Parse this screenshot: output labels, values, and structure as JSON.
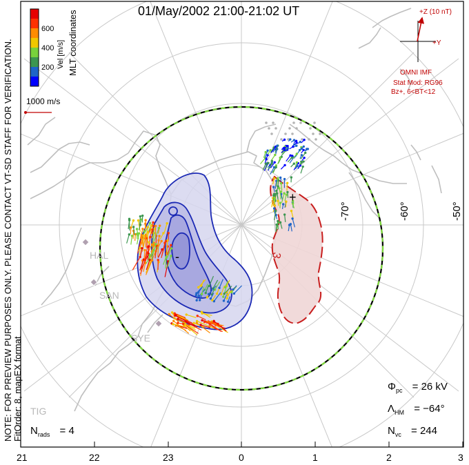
{
  "title": "01/May/2002 21:00-21:02 UT",
  "colorbar": {
    "label": "Vel [m/s]",
    "ticks": [
      "600",
      "400",
      "200"
    ],
    "colors": [
      "#0000ff",
      "#1e64c8",
      "#3c9650",
      "#78d23c",
      "#f0c800",
      "#ff8c00",
      "#ff3200",
      "#e60000"
    ]
  },
  "coordinates_label": "MLT coordinates",
  "reference_vector": {
    "label": "1000 m/s",
    "color": "#c00000"
  },
  "imf": {
    "z_label": "+Z (10 nT)",
    "y_label": "+Y",
    "source": "OMNI IMF",
    "model_line1": "Stat Mod: RG96",
    "model_line2": "Bz+, 6<BT<12",
    "color": "#c00000"
  },
  "latitude_labels": [
    "-70°",
    "-60°",
    "-50°"
  ],
  "mlt_ticks": [
    "21",
    "22",
    "23",
    "0",
    "1",
    "2",
    "3"
  ],
  "stations": [
    "HAL",
    "SAN",
    "SYE",
    "TIG"
  ],
  "contour_labels": {
    "min": "-",
    "max": "+",
    "contour3": "3"
  },
  "notes": {
    "preview": "NOTE: FOR PREVIEW PURPOSES ONLY. PLEASE CONTACT VT-SD STAFF FOR VERIFICATION.",
    "fit": "FitOrder: 8, mapEX format"
  },
  "stats": {
    "phi_symbol": "Φ",
    "phi_sub": "pc",
    "phi_value": "= 26 kV",
    "lambda_symbol": "Λ",
    "lambda_sub": "HM",
    "lambda_value": "= −64°",
    "nvc_symbol": "N",
    "nvc_sub": "vc",
    "nvc_value": "= 244",
    "nrads_symbol": "N",
    "nrads_sub": "rads",
    "nrads_value": "= 4"
  }
}
